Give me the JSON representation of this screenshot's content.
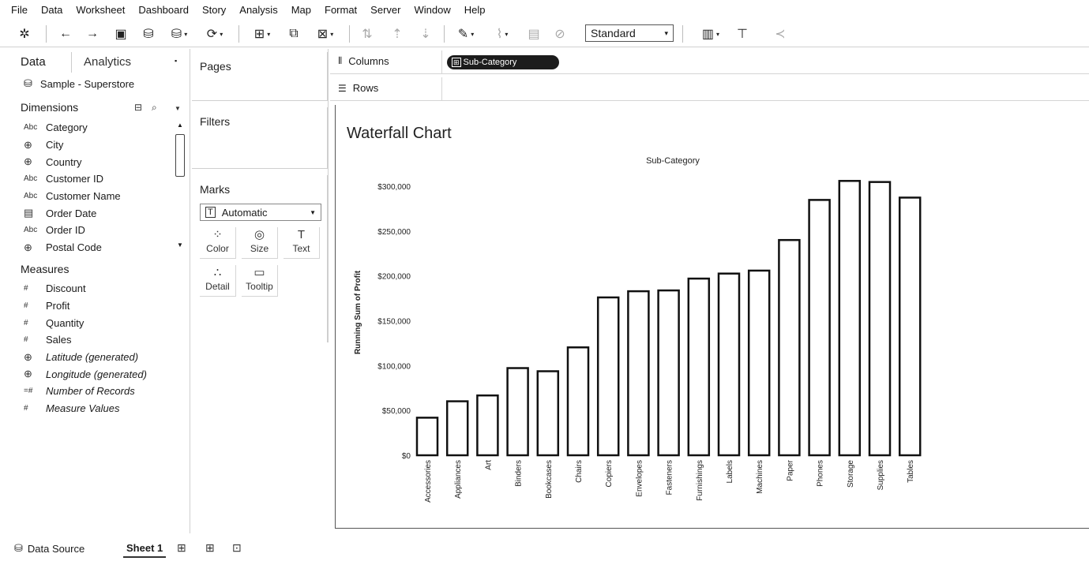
{
  "menu": [
    "File",
    "Data",
    "Worksheet",
    "Dashboard",
    "Story",
    "Analysis",
    "Map",
    "Format",
    "Server",
    "Window",
    "Help"
  ],
  "toolbar": {
    "fit_value": "Standard"
  },
  "data_pane": {
    "tab_data": "Data",
    "tab_analytics": "Analytics",
    "datasource": "Sample - Superstore",
    "dimensions_label": "Dimensions",
    "measures_label": "Measures",
    "dimensions": [
      {
        "icon": "Abc",
        "label": "Category"
      },
      {
        "icon": "globe-icon",
        "label": "City"
      },
      {
        "icon": "globe-icon",
        "label": "Country"
      },
      {
        "icon": "Abc",
        "label": "Customer ID"
      },
      {
        "icon": "Abc",
        "label": "Customer Name"
      },
      {
        "icon": "calendar-icon",
        "label": "Order Date"
      },
      {
        "icon": "Abc",
        "label": "Order ID"
      },
      {
        "icon": "globe-icon",
        "label": "Postal Code"
      }
    ],
    "measures": [
      {
        "icon": "#",
        "label": "Discount"
      },
      {
        "icon": "#",
        "label": "Profit"
      },
      {
        "icon": "#",
        "label": "Quantity"
      },
      {
        "icon": "#",
        "label": "Sales"
      },
      {
        "icon": "globe-icon",
        "label": "Latitude (generated)"
      },
      {
        "icon": "globe-icon",
        "label": "Longitude (generated)"
      },
      {
        "icon": "=#",
        "label": "Number of Records"
      },
      {
        "icon": "#",
        "label": "Measure Values"
      }
    ]
  },
  "shelves": {
    "pages": "Pages",
    "filters": "Filters",
    "marks": "Marks",
    "mark_type": "Automatic",
    "mark_buttons": [
      "Color",
      "Size",
      "Text",
      "Detail",
      "Tooltip"
    ],
    "columns": "Columns",
    "rows": "Rows",
    "columns_pill": "Sub-Category"
  },
  "sheet_title": "Waterfall Chart",
  "chart_data": {
    "type": "bar",
    "title": "Sub-Category",
    "ylabel": "Running Sum of Profit",
    "xlabel": "",
    "ylim": [
      0,
      300000
    ],
    "yticks": [
      "$0",
      "$50,000",
      "$100,000",
      "$150,000",
      "$200,000",
      "$250,000",
      "$300,000"
    ],
    "categories": [
      "Accessories",
      "Appliances",
      "Art",
      "Binders",
      "Bookcases",
      "Chairs",
      "Copiers",
      "Envelopes",
      "Fasteners",
      "Furnishings",
      "Labels",
      "Machines",
      "Paper",
      "Phones",
      "Storage",
      "Supplies",
      "Tables"
    ],
    "values": [
      41900,
      60200,
      66700,
      97200,
      93700,
      120300,
      176000,
      182900,
      183800,
      197000,
      202600,
      205900,
      240000,
      284700,
      305900,
      304700,
      287300
    ]
  },
  "bottom": {
    "datasource_tab": "Data Source",
    "sheet_tab": "Sheet 1"
  }
}
